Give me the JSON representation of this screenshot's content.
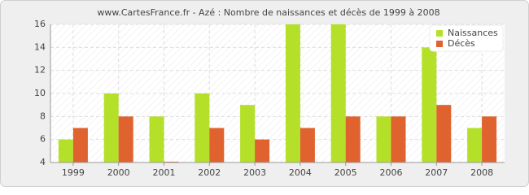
{
  "chart_data": {
    "type": "bar",
    "title": "www.CartesFrance.fr - Azé : Nombre de naissances et décès de 1999 à 2008",
    "categories": [
      "1999",
      "2000",
      "2001",
      "2002",
      "2003",
      "2004",
      "2005",
      "2006",
      "2007",
      "2008"
    ],
    "series": [
      {
        "name": "Naissances",
        "color": "#b5e02a",
        "values": [
          6,
          10,
          8,
          10,
          9,
          16,
          16,
          8,
          14,
          7
        ]
      },
      {
        "name": "Décès",
        "color": "#e0622f",
        "values": [
          7,
          8,
          4,
          7,
          6,
          7,
          8,
          8,
          9,
          8
        ]
      }
    ],
    "ylim": [
      4,
      16
    ],
    "yticks": [
      4,
      6,
      8,
      10,
      12,
      14,
      16
    ],
    "grid": true,
    "legend": "top-right"
  }
}
